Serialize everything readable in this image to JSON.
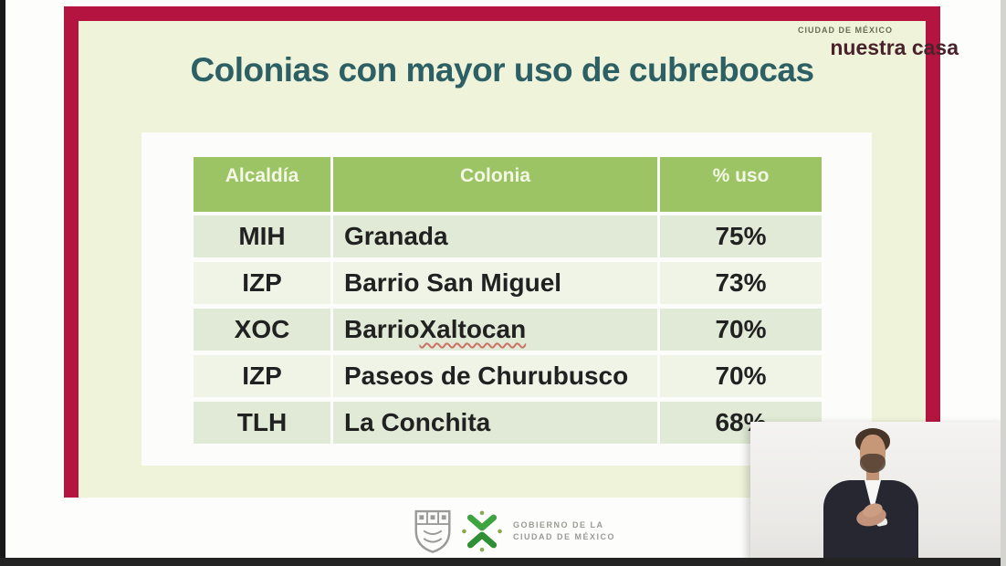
{
  "brand": {
    "small": "CIUDAD DE MÉXICO",
    "large": "nuestra casa"
  },
  "slide": {
    "title": "Colonias con mayor uso de cubrebocas"
  },
  "chart_data": {
    "type": "table",
    "title": "Colonias con mayor uso de cubrebocas",
    "columns": [
      "Alcaldía",
      "Colonia",
      "% uso"
    ],
    "rows": [
      {
        "alcaldia": "MIH",
        "colonia": "Granada",
        "pct_uso": "75%"
      },
      {
        "alcaldia": "IZP",
        "colonia": "Barrio San Miguel",
        "pct_uso": "73%"
      },
      {
        "alcaldia": "XOC",
        "colonia": "Barrio Xaltocan",
        "pct_uso": "70%",
        "misspelled_word": "Xaltocan"
      },
      {
        "alcaldia": "IZP",
        "colonia": "Paseos de Churubusco",
        "pct_uso": "70%"
      },
      {
        "alcaldia": "TLH",
        "colonia": "La Conchita",
        "pct_uso": "68%"
      }
    ],
    "layout": {
      "header_position": "top",
      "grid": "white-gaps",
      "zebra_rows": true
    }
  },
  "footer": {
    "gov_line1": "GOBIERNO DE LA",
    "gov_line2": "CIUDAD DE MÉXICO"
  },
  "icons": {
    "shield": "cdmx-heraldic-shield-icon",
    "cdmx": "cdmx-x-logo-icon"
  },
  "colors": {
    "frame_red": "#b31540",
    "slide_green_bg": "#eff3da",
    "table_header_green": "#9cc464",
    "row_dark": "#e1ead6",
    "row_light": "#eff4e7",
    "title_teal": "#2d6065",
    "brand_maroon": "#4a222c"
  }
}
